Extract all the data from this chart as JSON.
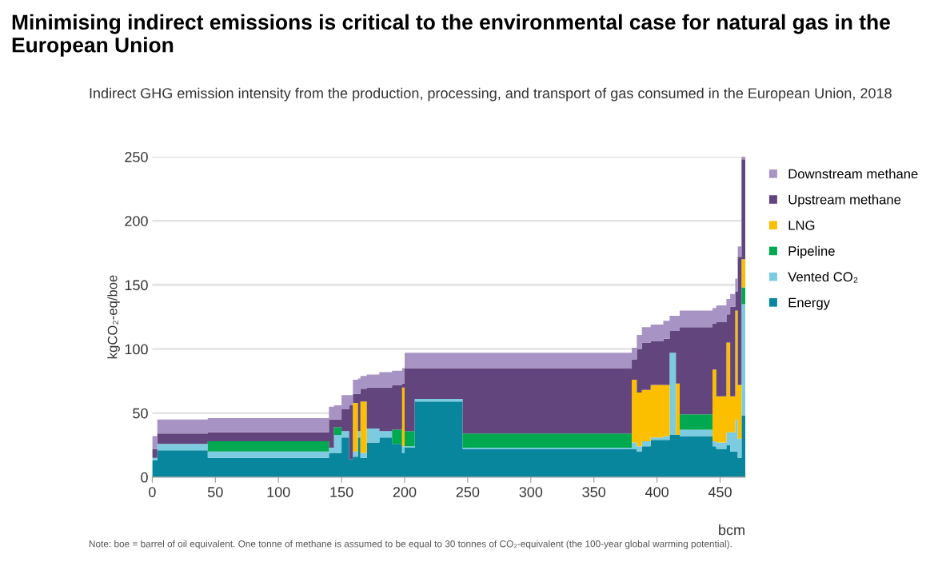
{
  "chart_data": {
    "type": "area",
    "stacked": true,
    "title": "Minimising indirect emissions is critical to the environmental case for natural gas in the European Union",
    "subtitle": "Indirect GHG emission intensity from the production, processing, and transport of gas consumed in the European Union, 2018",
    "xlabel": "bcm",
    "ylabel": "kgCO₂-eq/boe",
    "annotations": [
      "Note: boe = barrel of oil equivalent. One tonne of methane is assumed to be equal to 30 tonnes of CO₂-equivalent (the 100-year global warming potential)."
    ],
    "x": [
      0,
      4,
      4,
      44,
      44,
      140,
      140,
      144,
      144,
      150,
      150,
      156,
      156,
      159,
      159,
      163,
      163,
      165,
      165,
      170,
      170,
      180,
      180,
      190,
      190,
      198,
      198,
      200,
      200,
      208,
      208,
      246,
      246,
      380,
      380,
      384,
      384,
      388,
      388,
      395,
      395,
      405,
      405,
      410,
      410,
      415,
      415,
      418,
      418,
      444,
      444,
      447,
      447,
      455,
      455,
      458,
      458,
      462,
      462,
      464,
      464,
      467,
      467,
      470
    ],
    "series": [
      {
        "name": "Energy",
        "color": "#07869e",
        "values": [
          13,
          13,
          21,
          21,
          15,
          15,
          19,
          19,
          19,
          19,
          31,
          31,
          14,
          14,
          16,
          16,
          31,
          31,
          15,
          15,
          27,
          27,
          31,
          31,
          26,
          26,
          19,
          19,
          23,
          23,
          59,
          59,
          22,
          22,
          22,
          22,
          20,
          20,
          24,
          24,
          29,
          29,
          29,
          29,
          33,
          33,
          33,
          33,
          32,
          32,
          24,
          24,
          22,
          22,
          25,
          25,
          20,
          20,
          20,
          20,
          15,
          15,
          48,
          48
        ]
      },
      {
        "name": "Vented CO₂",
        "color": "#7ccbe0",
        "values": [
          2,
          2,
          5,
          5,
          5,
          5,
          4,
          4,
          14,
          14,
          5,
          5,
          0,
          0,
          4,
          4,
          5,
          5,
          4,
          4,
          11,
          11,
          5,
          5,
          0,
          0,
          5,
          5,
          1,
          1,
          2,
          2,
          1,
          1,
          5,
          5,
          4,
          4,
          4,
          4,
          2,
          2,
          3,
          3,
          64,
          64,
          0,
          0,
          5,
          5,
          4,
          4,
          5,
          5,
          10,
          10,
          15,
          15,
          25,
          25,
          15,
          15,
          87,
          87
        ]
      },
      {
        "name": "Pipeline",
        "color": "#00a84f",
        "values": [
          0,
          0,
          0,
          0,
          8,
          8,
          0,
          0,
          6,
          6,
          0,
          0,
          0,
          0,
          0,
          0,
          0,
          0,
          0,
          0,
          0,
          0,
          0,
          0,
          11,
          11,
          0,
          0,
          12,
          12,
          0,
          0,
          11,
          11,
          0,
          0,
          0,
          0,
          0,
          0,
          0,
          0,
          0,
          0,
          0,
          0,
          0,
          0,
          12,
          12,
          0,
          0,
          0,
          0,
          0,
          0,
          0,
          0,
          0,
          0,
          0,
          0,
          13,
          13
        ]
      },
      {
        "name": "LNG",
        "color": "#fbbf00",
        "values": [
          0,
          0,
          0,
          0,
          0,
          0,
          0,
          0,
          0,
          0,
          0,
          0,
          0,
          0,
          38,
          38,
          0,
          0,
          40,
          40,
          0,
          0,
          0,
          0,
          0,
          0,
          46,
          46,
          0,
          0,
          0,
          0,
          0,
          0,
          49,
          49,
          42,
          42,
          40,
          40,
          41,
          41,
          40,
          40,
          0,
          0,
          40,
          40,
          0,
          0,
          56,
          56,
          36,
          36,
          70,
          70,
          28,
          28,
          85,
          85,
          42,
          42,
          22,
          22
        ]
      },
      {
        "name": "Upstream methane",
        "color": "#63457d",
        "values": [
          7,
          7,
          8,
          8,
          7,
          7,
          22,
          22,
          6,
          6,
          17,
          17,
          42,
          42,
          7,
          7,
          29,
          29,
          10,
          10,
          32,
          32,
          34,
          34,
          35,
          35,
          3,
          3,
          49,
          49,
          24,
          24,
          51,
          51,
          16,
          16,
          34,
          34,
          37,
          37,
          34,
          34,
          36,
          36,
          17,
          17,
          41,
          41,
          68,
          68,
          36,
          36,
          58,
          58,
          22,
          22,
          70,
          70,
          15,
          15,
          100,
          100,
          78,
          78
        ]
      },
      {
        "name": "Downstream methane",
        "color": "#a894c4",
        "values": [
          10,
          10,
          11,
          11,
          11,
          11,
          10,
          10,
          11,
          11,
          11,
          11,
          8,
          8,
          11,
          11,
          12,
          12,
          10,
          10,
          10,
          10,
          12,
          12,
          11,
          11,
          12,
          12,
          12,
          12,
          12,
          12,
          12,
          12,
          9,
          9,
          11,
          11,
          12,
          12,
          13,
          13,
          14,
          14,
          12,
          12,
          12,
          12,
          13,
          13,
          12,
          12,
          13,
          13,
          12,
          12,
          10,
          10,
          10,
          10,
          8,
          8,
          2,
          2
        ]
      }
    ],
    "xlim": [
      0,
      470
    ],
    "xticks": [
      0,
      50,
      100,
      150,
      200,
      250,
      300,
      350,
      400,
      450
    ],
    "ylim": [
      0,
      250
    ],
    "yticks": [
      0,
      50,
      100,
      150,
      200,
      250
    ],
    "grid": "y",
    "legend": "top right"
  }
}
